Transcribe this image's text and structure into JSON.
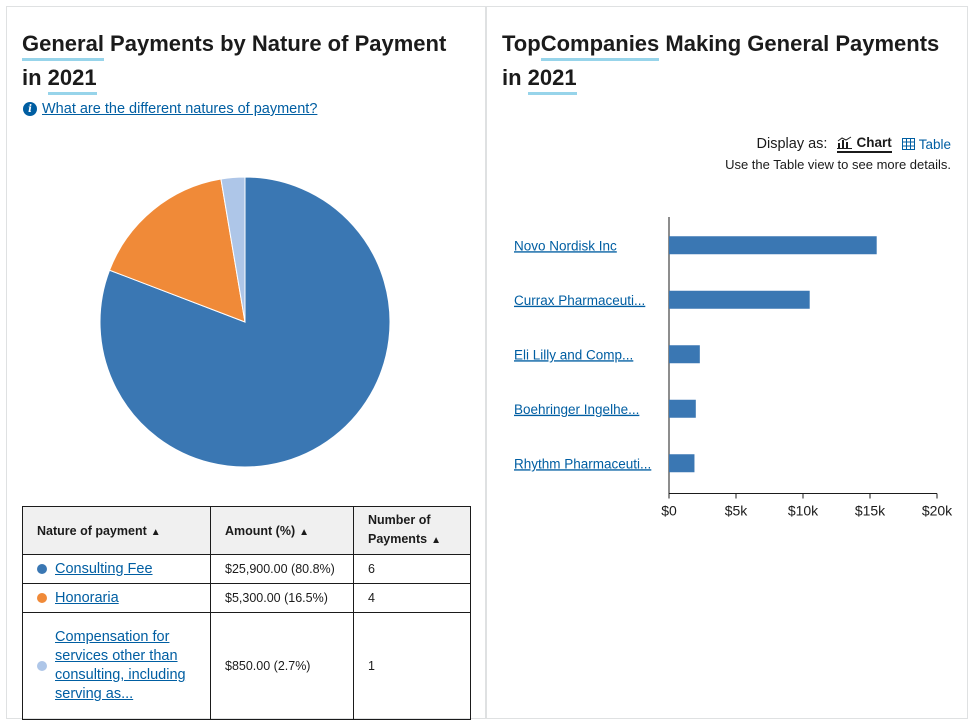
{
  "left": {
    "title_parts": [
      "General",
      " Payments by Nature of Payment in ",
      "2021"
    ],
    "help_link": "What are the different natures of payment?",
    "table": {
      "headers": [
        "Nature of payment",
        "Amount (%)",
        "Number of Payments"
      ],
      "rows": [
        {
          "name": "Consulting Fee",
          "amount": "$25,900.00 (80.8%)",
          "count": "6",
          "color": "#3a77b3"
        },
        {
          "name": "Honoraria",
          "amount": "$5,300.00 (16.5%)",
          "count": "4",
          "color": "#f08a38"
        },
        {
          "name": "Compensation for services other than consulting, including serving as...",
          "amount": "$850.00 (2.7%)",
          "count": "1",
          "color": "#aec6e8"
        }
      ]
    }
  },
  "right": {
    "title_parts": [
      "Top",
      " Companies",
      " Making General Payments in ",
      "2021"
    ],
    "display_as_label": "Display as:",
    "chart_option": "Chart",
    "table_option": "Table",
    "hint": "Use the Table view to see more details."
  },
  "chart_data": [
    {
      "type": "pie",
      "categories": [
        "Consulting Fee",
        "Honoraria",
        "Compensation for services other than consulting, including serving as..."
      ],
      "values": [
        25900,
        5300,
        850
      ],
      "percentages": [
        80.8,
        16.5,
        2.7
      ],
      "colors": [
        "#3a77b3",
        "#f08a38",
        "#aec6e8"
      ]
    },
    {
      "type": "bar",
      "orientation": "horizontal",
      "categories": [
        "Novo Nordisk Inc",
        "Currax Pharmaceuti...",
        "Eli Lilly and Comp...",
        "Boehringer Ingelhe...",
        "Rhythm Pharmaceuti..."
      ],
      "values": [
        15500,
        10500,
        2300,
        2000,
        1900
      ],
      "xlim": [
        0,
        20000
      ],
      "xticks": [
        "$0",
        "$5k",
        "$10k",
        "$15k",
        "$20k"
      ],
      "tick_values": [
        0,
        5000,
        10000,
        15000,
        20000
      ],
      "color": "#3a77b3"
    }
  ]
}
